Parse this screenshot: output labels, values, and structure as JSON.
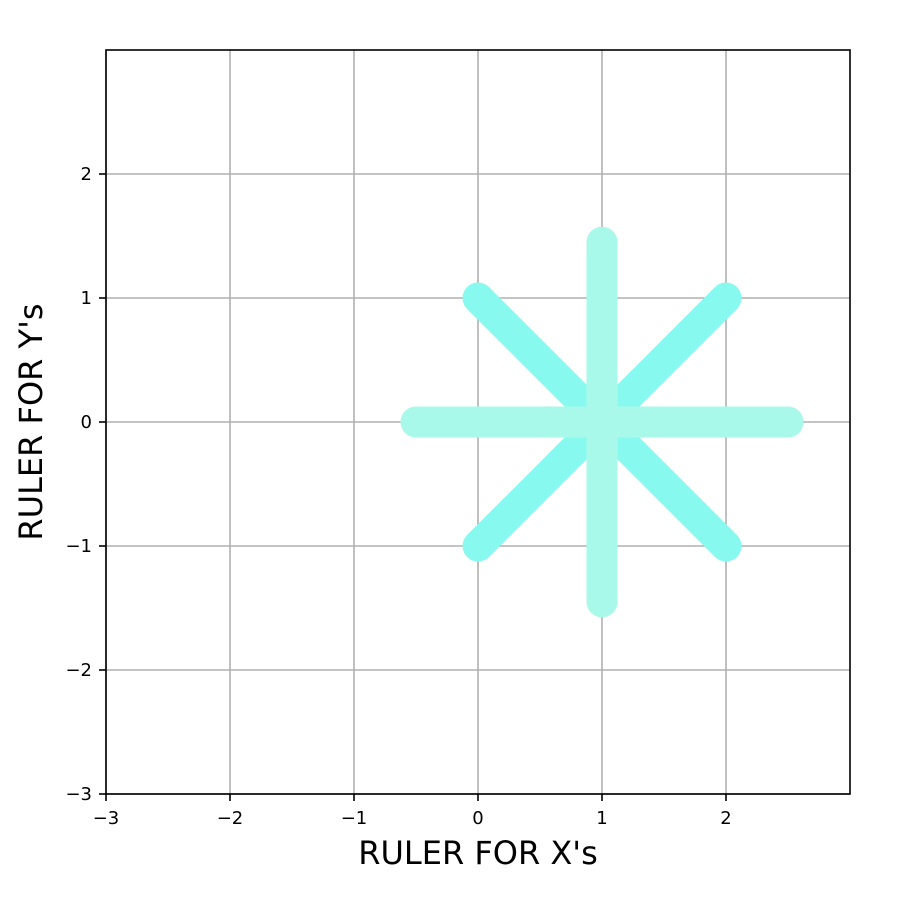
{
  "chart_data": {
    "type": "line",
    "title": "",
    "xlabel": "RULER FOR X's",
    "ylabel": "RULER FOR Y's",
    "xlim": [
      -3,
      3
    ],
    "ylim": [
      -3,
      3
    ],
    "grid": true,
    "xticks": [
      -3,
      -2,
      -1,
      0,
      1,
      2
    ],
    "yticks": [
      -3,
      -2,
      -1,
      0,
      1,
      2
    ],
    "xtick_labels": [
      "−3",
      "−2",
      "−1",
      "0",
      "1",
      "2"
    ],
    "ytick_labels": [
      "−3",
      "−2",
      "−1",
      "0",
      "1",
      "2"
    ],
    "series": [
      {
        "x": [
          0,
          2
        ],
        "y": [
          1,
          -1
        ],
        "color": "#87f9ee"
      },
      {
        "x": [
          0,
          2
        ],
        "y": [
          -1,
          1
        ],
        "color": "#87f9ee"
      },
      {
        "x": [
          -0.5,
          2.5
        ],
        "y": [
          0,
          0
        ],
        "color": "#a8f9e9"
      },
      {
        "x": [
          1,
          1
        ],
        "y": [
          -1.45,
          1.45
        ],
        "color": "#a8f9e9"
      }
    ]
  }
}
